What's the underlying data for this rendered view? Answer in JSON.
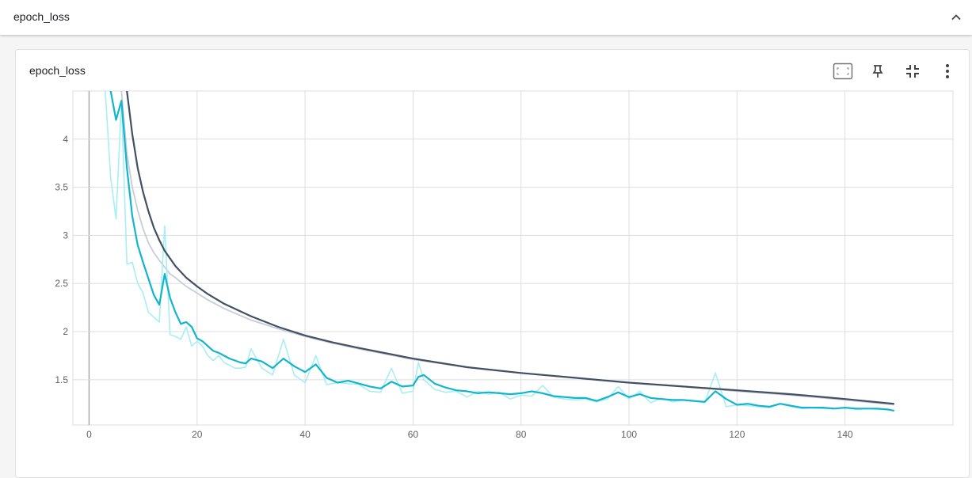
{
  "section": {
    "title": "epoch_loss"
  },
  "card": {
    "title": "epoch_loss"
  },
  "toolbar": {
    "icons": [
      "fit-domain-icon",
      "pin-icon",
      "exit-fullscreen-icon",
      "more-vert-icon"
    ]
  },
  "colors": {
    "train_smoothed": "#12b5cb",
    "train_raw": "#a8eef5",
    "val_smoothed": "#425066",
    "val_raw": "#c8ccd6",
    "grid": "#dddddd",
    "zero_axis": "#9e9e9e"
  },
  "chart_data": {
    "type": "line",
    "title": "epoch_loss",
    "xlabel": "",
    "ylabel": "",
    "xlim": [
      -3,
      160
    ],
    "ylim": [
      1.03,
      4.5
    ],
    "x_ticks": [
      0,
      20,
      40,
      60,
      80,
      100,
      120,
      140
    ],
    "y_ticks": [
      1.5,
      2,
      2.5,
      3,
      3.5,
      4
    ],
    "grid": true,
    "legend": "none",
    "series": [
      {
        "role": "train_raw",
        "x": [
          3,
          4,
          5,
          6,
          7,
          8,
          9,
          10,
          11,
          12,
          13,
          14,
          15,
          16,
          17,
          18,
          19,
          20,
          21,
          22,
          23,
          24,
          25,
          26,
          27,
          28,
          29,
          30,
          32,
          34,
          36,
          38,
          40,
          42,
          44,
          46,
          48,
          50,
          52,
          54,
          56,
          58,
          60,
          61,
          62,
          64,
          66,
          68,
          70,
          72,
          74,
          76,
          78,
          80,
          82,
          84,
          86,
          88,
          90,
          92,
          94,
          96,
          98,
          100,
          102,
          104,
          106,
          108,
          110,
          112,
          114,
          116,
          118,
          120,
          122,
          124,
          126,
          128,
          130,
          132,
          134,
          136,
          138,
          140,
          142,
          144,
          146,
          148,
          149
        ],
        "y": [
          4.5,
          3.6,
          3.17,
          4.4,
          2.7,
          2.72,
          2.5,
          2.4,
          2.2,
          2.15,
          2.1,
          3.1,
          1.97,
          1.95,
          1.92,
          2.05,
          1.85,
          1.9,
          1.85,
          1.75,
          1.7,
          1.75,
          1.68,
          1.65,
          1.62,
          1.62,
          1.63,
          1.82,
          1.62,
          1.55,
          1.92,
          1.55,
          1.47,
          1.75,
          1.45,
          1.47,
          1.46,
          1.45,
          1.38,
          1.37,
          1.62,
          1.36,
          1.38,
          1.68,
          1.5,
          1.4,
          1.37,
          1.38,
          1.32,
          1.38,
          1.35,
          1.37,
          1.3,
          1.34,
          1.33,
          1.44,
          1.32,
          1.3,
          1.29,
          1.3,
          1.27,
          1.3,
          1.43,
          1.3,
          1.38,
          1.26,
          1.31,
          1.27,
          1.29,
          1.28,
          1.26,
          1.57,
          1.22,
          1.24,
          1.23,
          1.22,
          1.21,
          1.25,
          1.22,
          1.2,
          1.21,
          1.2,
          1.2,
          1.21,
          1.19,
          1.2,
          1.19,
          1.19,
          1.18
        ]
      },
      {
        "role": "train_smoothed",
        "x": [
          4,
          5,
          6,
          7,
          8,
          9,
          10,
          11,
          12,
          13,
          14,
          15,
          16,
          17,
          18,
          19,
          20,
          21,
          22,
          23,
          24,
          25,
          26,
          27,
          28,
          29,
          30,
          32,
          34,
          36,
          38,
          40,
          42,
          44,
          46,
          48,
          50,
          52,
          54,
          56,
          58,
          60,
          61,
          62,
          64,
          66,
          68,
          70,
          72,
          74,
          76,
          78,
          80,
          82,
          84,
          86,
          88,
          90,
          92,
          94,
          96,
          98,
          100,
          102,
          104,
          106,
          108,
          110,
          112,
          114,
          116,
          118,
          120,
          122,
          124,
          126,
          128,
          130,
          132,
          134,
          136,
          138,
          140,
          142,
          144,
          146,
          148,
          149
        ],
        "y": [
          4.5,
          4.2,
          4.4,
          3.7,
          3.2,
          2.9,
          2.72,
          2.55,
          2.38,
          2.28,
          2.6,
          2.35,
          2.2,
          2.08,
          2.1,
          2.05,
          1.93,
          1.9,
          1.85,
          1.8,
          1.78,
          1.75,
          1.72,
          1.7,
          1.68,
          1.67,
          1.72,
          1.69,
          1.62,
          1.72,
          1.64,
          1.58,
          1.66,
          1.52,
          1.47,
          1.49,
          1.46,
          1.43,
          1.41,
          1.48,
          1.43,
          1.44,
          1.53,
          1.55,
          1.46,
          1.42,
          1.39,
          1.38,
          1.36,
          1.37,
          1.36,
          1.35,
          1.36,
          1.38,
          1.36,
          1.33,
          1.32,
          1.31,
          1.31,
          1.28,
          1.32,
          1.37,
          1.32,
          1.35,
          1.31,
          1.3,
          1.29,
          1.29,
          1.28,
          1.27,
          1.38,
          1.3,
          1.24,
          1.25,
          1.23,
          1.22,
          1.25,
          1.23,
          1.21,
          1.21,
          1.21,
          1.2,
          1.21,
          1.2,
          1.2,
          1.2,
          1.19,
          1.18
        ]
      },
      {
        "role": "val_raw",
        "x": [
          6,
          7,
          8,
          9,
          10,
          11,
          12,
          13,
          14,
          15,
          16,
          18,
          20,
          22,
          25,
          30,
          35,
          40,
          45,
          50,
          60,
          70,
          80,
          90,
          100,
          110,
          120,
          130,
          140,
          149
        ],
        "y": [
          4.5,
          3.85,
          3.5,
          3.26,
          3.07,
          2.92,
          2.82,
          2.74,
          2.67,
          2.6,
          2.56,
          2.47,
          2.4,
          2.33,
          2.24,
          2.12,
          2.03,
          1.95,
          1.88,
          1.82,
          1.71,
          1.63,
          1.57,
          1.52,
          1.47,
          1.43,
          1.38,
          1.34,
          1.29,
          1.24
        ]
      },
      {
        "role": "val_smoothed",
        "x": [
          7,
          8,
          9,
          10,
          11,
          12,
          13,
          14,
          15,
          16,
          17,
          18,
          20,
          22,
          25,
          30,
          35,
          40,
          45,
          50,
          60,
          70,
          80,
          90,
          100,
          110,
          120,
          130,
          140,
          149
        ],
        "y": [
          4.5,
          4.05,
          3.7,
          3.45,
          3.25,
          3.08,
          2.95,
          2.84,
          2.76,
          2.68,
          2.62,
          2.56,
          2.47,
          2.39,
          2.29,
          2.16,
          2.05,
          1.96,
          1.89,
          1.83,
          1.72,
          1.63,
          1.57,
          1.52,
          1.47,
          1.43,
          1.39,
          1.35,
          1.3,
          1.25
        ]
      }
    ]
  }
}
